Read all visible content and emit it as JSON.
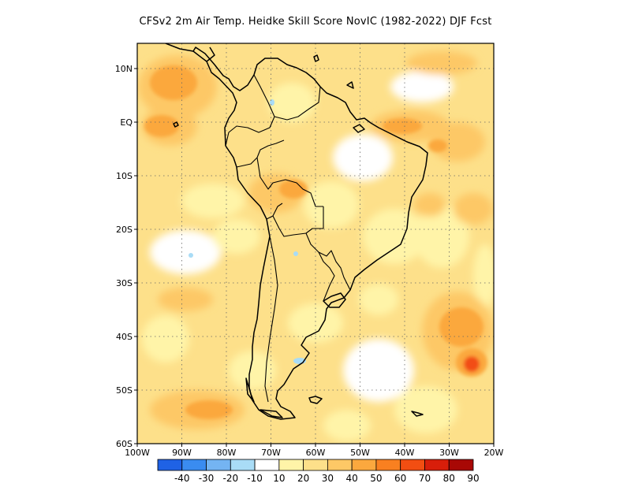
{
  "title": "CFSv2  2m Air Temp. Heidke Skill Score NovIC (1982-2022) DJF Fcst",
  "map": {
    "lon_range": [
      -100,
      -20
    ],
    "lat_range": [
      -60,
      10
    ],
    "lat_labels": [
      "10N",
      "EQ",
      "10S",
      "20S",
      "30S",
      "40S",
      "50S",
      "60S"
    ],
    "lon_labels": [
      "100W",
      "90W",
      "80W",
      "70W",
      "60W",
      "50W",
      "40W",
      "30W",
      "20W"
    ],
    "gridlines": "dotted"
  },
  "colorbar": {
    "labels": [
      "-40",
      "-30",
      "-20",
      "-10",
      "10",
      "20",
      "30",
      "40",
      "50",
      "60",
      "70",
      "80",
      "90"
    ],
    "colors": [
      "#1f62e5",
      "#3a8cf0",
      "#74b4f2",
      "#a9dcf6",
      "#ffffff",
      "#fff4a8",
      "#fde08a",
      "#fdc866",
      "#fba83e",
      "#f98020",
      "#f24e12",
      "#d81e0a",
      "#a80805"
    ]
  }
}
